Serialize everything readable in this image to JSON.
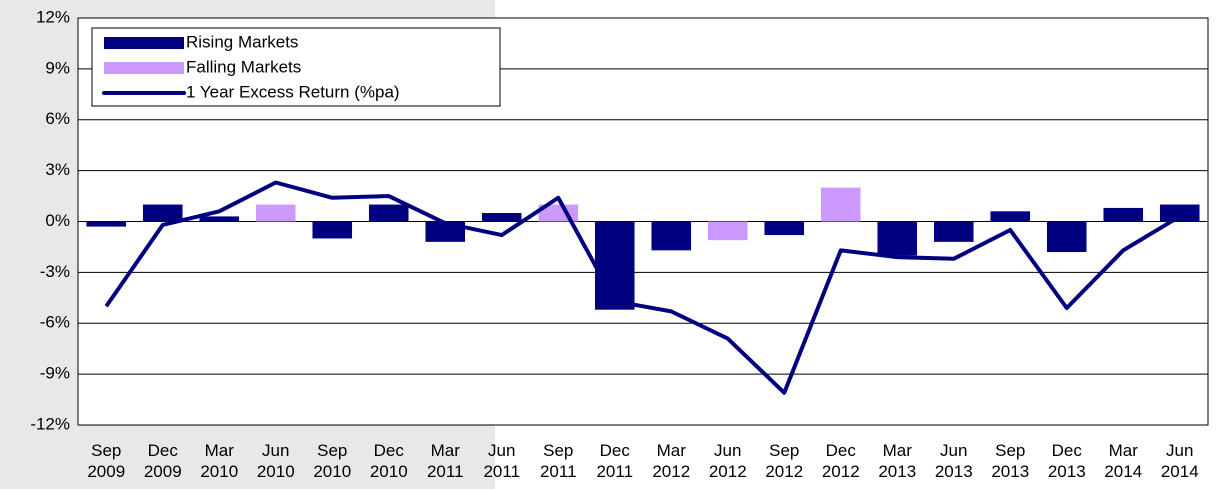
{
  "chart_data": {
    "type": "bar",
    "categories": [
      "Sep 2009",
      "Dec 2009",
      "Mar 2010",
      "Jun 2010",
      "Sep 2010",
      "Dec 2010",
      "Mar 2011",
      "Jun 2011",
      "Sep 2011",
      "Dec 2011",
      "Mar 2012",
      "Jun 2012",
      "Sep 2012",
      "Dec 2012",
      "Mar 2013",
      "Jun 2013",
      "Sep 2013",
      "Dec 2013",
      "Mar 2014",
      "Jun 2014"
    ],
    "series": [
      {
        "name": "Rising Markets",
        "type": "bar",
        "color": "#000080",
        "values": [
          -0.3,
          1.0,
          0.3,
          null,
          -1.0,
          1.0,
          -1.2,
          0.5,
          null,
          -5.2,
          -1.7,
          null,
          -0.8,
          null,
          -2.0,
          -1.2,
          0.6,
          -1.8,
          0.8,
          1.0
        ]
      },
      {
        "name": "Falling Markets",
        "type": "bar",
        "color": "#cc99ff",
        "values": [
          null,
          null,
          null,
          1.0,
          null,
          null,
          null,
          null,
          1.0,
          null,
          null,
          -1.1,
          null,
          2.0,
          null,
          null,
          null,
          null,
          null,
          null
        ]
      },
      {
        "name": "1 Year Excess Return (%pa)",
        "type": "line",
        "color": "#000080",
        "values": [
          -5.0,
          -0.2,
          0.6,
          2.3,
          1.4,
          1.5,
          -0.1,
          -0.8,
          1.4,
          -4.7,
          -5.3,
          -6.9,
          -10.1,
          -1.7,
          -2.1,
          -2.2,
          -0.5,
          -5.1,
          -1.7,
          0.3
        ]
      }
    ],
    "ylim": [
      -12,
      12
    ],
    "yticks": [
      {
        "value": -12,
        "label": "-12%"
      },
      {
        "value": -9,
        "label": "-9%"
      },
      {
        "value": -6,
        "label": "-6%"
      },
      {
        "value": -3,
        "label": "-3%"
      },
      {
        "value": 0,
        "label": "0%"
      },
      {
        "value": 3,
        "label": "3%"
      },
      {
        "value": 6,
        "label": "6%"
      },
      {
        "value": 9,
        "label": "9%"
      },
      {
        "value": 12,
        "label": "12%"
      }
    ],
    "grid": true
  }
}
